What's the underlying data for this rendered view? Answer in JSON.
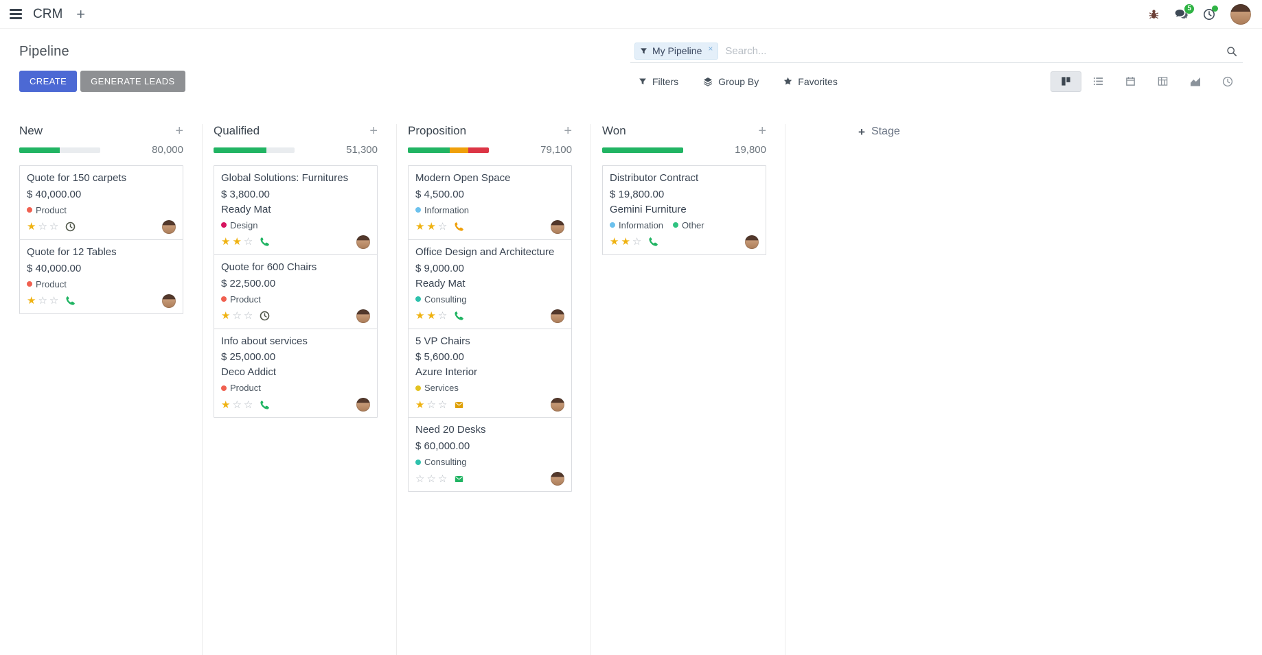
{
  "navbar": {
    "app_name": "CRM",
    "messages_badge": "5"
  },
  "control_panel": {
    "title": "Pipeline",
    "create_label": "CREATE",
    "generate_leads_label": "GENERATE LEADS",
    "search": {
      "facet_label": "My Pipeline",
      "facet_remove": "×",
      "placeholder": "Search..."
    },
    "filters_label": "Filters",
    "group_by_label": "Group By",
    "favorites_label": "Favorites"
  },
  "kanban": {
    "stage_adder_label": "Stage",
    "columns": [
      {
        "name": "New",
        "total": "80,000",
        "progress": [
          {
            "color": "#21b463",
            "pct": 50
          }
        ],
        "cards": [
          {
            "title": "Quote for 150 carpets",
            "amount": "$ 40,000.00",
            "tags": [
              {
                "label": "Product",
                "color": "#f06050"
              }
            ],
            "stars": 1,
            "activity": {
              "icon": "clock",
              "color": "#51584a"
            }
          },
          {
            "title": "Quote for 12 Tables",
            "amount": "$ 40,000.00",
            "tags": [
              {
                "label": "Product",
                "color": "#f06050"
              }
            ],
            "stars": 1,
            "activity": {
              "icon": "phone",
              "color": "#21b463"
            }
          }
        ]
      },
      {
        "name": "Qualified",
        "total": "51,300",
        "progress": [
          {
            "color": "#21b463",
            "pct": 65
          }
        ],
        "cards": [
          {
            "title": "Global Solutions: Furnitures",
            "amount": "$ 3,800.00",
            "partner": "Ready Mat",
            "tags": [
              {
                "label": "Design",
                "color": "#d6145f"
              }
            ],
            "stars": 2,
            "activity": {
              "icon": "phone",
              "color": "#21b463"
            }
          },
          {
            "title": "Quote for 600 Chairs",
            "amount": "$ 22,500.00",
            "tags": [
              {
                "label": "Product",
                "color": "#f06050"
              }
            ],
            "stars": 1,
            "activity": {
              "icon": "clock",
              "color": "#51584a"
            }
          },
          {
            "title": "Info about services",
            "amount": "$ 25,000.00",
            "partner": "Deco Addict",
            "tags": [
              {
                "label": "Product",
                "color": "#f06050"
              }
            ],
            "stars": 1,
            "activity": {
              "icon": "phone",
              "color": "#21b463"
            }
          }
        ]
      },
      {
        "name": "Proposition",
        "total": "79,100",
        "progress": [
          {
            "color": "#21b463",
            "pct": 52
          },
          {
            "color": "#efa00b",
            "pct": 23
          },
          {
            "color": "#dc3545",
            "pct": 25
          }
        ],
        "cards": [
          {
            "title": "Modern Open Space",
            "amount": "$ 4,500.00",
            "tags": [
              {
                "label": "Information",
                "color": "#6cc1ed"
              }
            ],
            "stars": 2,
            "activity": {
              "icon": "phone",
              "color": "#efa00b"
            }
          },
          {
            "title": "Office Design and Architecture",
            "amount": "$ 9,000.00",
            "partner": "Ready Mat",
            "tags": [
              {
                "label": "Consulting",
                "color": "#2ec1ac"
              }
            ],
            "stars": 2,
            "activity": {
              "icon": "phone",
              "color": "#21b463"
            }
          },
          {
            "title": "5 VP Chairs",
            "amount": "$ 5,600.00",
            "partner": "Azure Interior",
            "tags": [
              {
                "label": "Services",
                "color": "#e3c220"
              }
            ],
            "stars": 1,
            "activity": {
              "icon": "envelope",
              "color": "#dfa005"
            }
          },
          {
            "title": "Need 20 Desks",
            "amount": "$ 60,000.00",
            "tags": [
              {
                "label": "Consulting",
                "color": "#2ec1ac"
              }
            ],
            "stars": 0,
            "activity": {
              "icon": "envelope",
              "color": "#21b463"
            }
          }
        ]
      },
      {
        "name": "Won",
        "total": "19,800",
        "progress": [
          {
            "color": "#21b463",
            "pct": 100
          }
        ],
        "cards": [
          {
            "title": "Distributor Contract",
            "amount": "$ 19,800.00",
            "partner": "Gemini Furniture",
            "tags": [
              {
                "label": "Information",
                "color": "#6cc1ed"
              },
              {
                "label": "Other",
                "color": "#30c381"
              }
            ],
            "stars": 2,
            "activity": {
              "icon": "phone",
              "color": "#21b463"
            }
          }
        ]
      }
    ]
  },
  "colors": {
    "primary_button": "#4c69d4",
    "secondary_button": "#8e9093",
    "progress_success": "#21b463",
    "progress_warning": "#efa00b",
    "progress_danger": "#dc3545",
    "star_gold": "#efb211",
    "badge_green": "#2fb344",
    "facet_bg": "#e4eff9",
    "progress_empty": "#e9ecef"
  }
}
